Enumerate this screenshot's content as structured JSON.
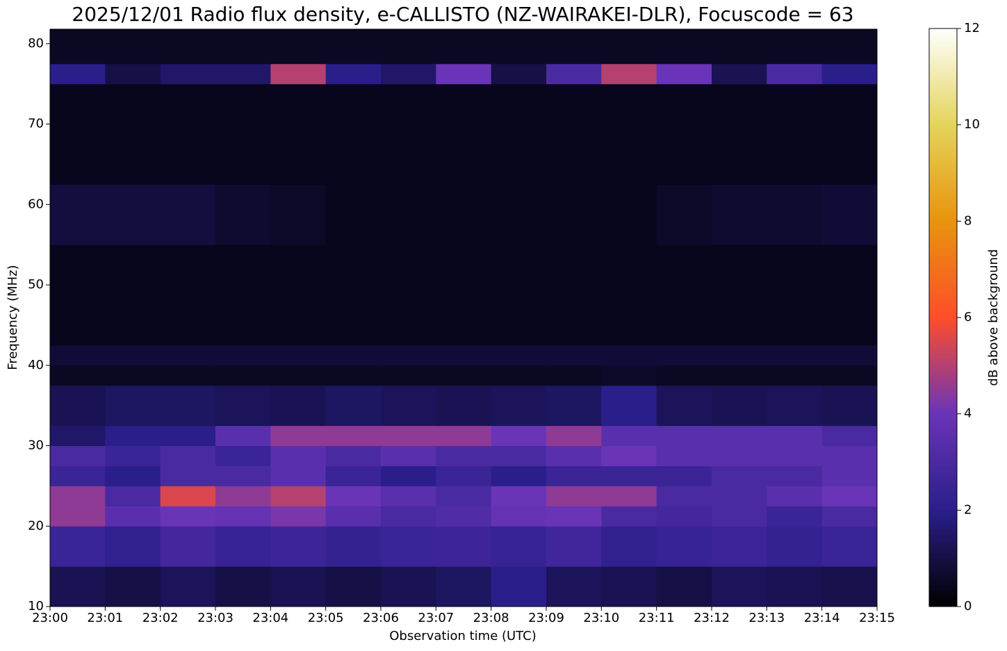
{
  "chart_data": {
    "type": "heatmap",
    "title": "2025/12/01 Radio flux density, e-CALLISTO (NZ-WAIRAKEI-DLR), Focuscode = 63",
    "x_label": "Observation time (UTC)",
    "y_label": "Frequency (MHz)",
    "colorbar_label": "dB above background",
    "xlim": [
      1380,
      1395
    ],
    "xticks": [
      {
        "value": 1380,
        "label": "23:00"
      },
      {
        "value": 1381,
        "label": "23:01"
      },
      {
        "value": 1382,
        "label": "23:02"
      },
      {
        "value": 1383,
        "label": "23:03"
      },
      {
        "value": 1384,
        "label": "23:04"
      },
      {
        "value": 1385,
        "label": "23:05"
      },
      {
        "value": 1386,
        "label": "23:06"
      },
      {
        "value": 1387,
        "label": "23:07"
      },
      {
        "value": 1388,
        "label": "23:08"
      },
      {
        "value": 1389,
        "label": "23:09"
      },
      {
        "value": 1390,
        "label": "23:10"
      },
      {
        "value": 1391,
        "label": "23:11"
      },
      {
        "value": 1392,
        "label": "23:12"
      },
      {
        "value": 1393,
        "label": "23:13"
      },
      {
        "value": 1394,
        "label": "23:14"
      },
      {
        "value": 1395,
        "label": "23:15"
      }
    ],
    "ylim": [
      10,
      81.8
    ],
    "yticks": [
      10,
      20,
      30,
      40,
      50,
      60,
      70,
      80
    ],
    "zlim": [
      0,
      12
    ],
    "zticks": [
      0,
      2,
      4,
      6,
      8,
      10,
      12
    ],
    "colormap": [
      "#000000",
      "#2a1f8a",
      "#6a34b8",
      "#ff4d2a",
      "#e8940c",
      "#e4d45a",
      "#ffffff"
    ],
    "xbins": [
      1380,
      1381,
      1382,
      1383,
      1384,
      1385,
      1386,
      1387,
      1388,
      1389,
      1390,
      1391,
      1392,
      1393,
      1394,
      1395
    ],
    "ybins": [
      10,
      15,
      20,
      22.5,
      25,
      27.5,
      30,
      32.5,
      37.5,
      40,
      42.5,
      55,
      62.5,
      75,
      77.5,
      81.8
    ],
    "z": [
      [
        1.2,
        1,
        1.3,
        1,
        1.2,
        1,
        1.2,
        1.4,
        2,
        1.3,
        1.2,
        1,
        1.3,
        1.2,
        1.1
      ],
      [
        2.5,
        2.2,
        2.8,
        2.4,
        2.6,
        2.3,
        2.5,
        2.6,
        2.4,
        2.7,
        2.2,
        2.4,
        2.6,
        2.3,
        2.5
      ],
      [
        4.5,
        3.5,
        4,
        3.8,
        4.2,
        3.5,
        3,
        3.2,
        3.8,
        4,
        3,
        2.8,
        3,
        2.5,
        3
      ],
      [
        4.5,
        3,
        5.5,
        4.5,
        5,
        4,
        3.5,
        3,
        4,
        4.5,
        4.5,
        3,
        3,
        3.5,
        4
      ],
      [
        2.5,
        2,
        3,
        3,
        3.5,
        2.5,
        2,
        2.5,
        2,
        2.5,
        2.5,
        2.5,
        3,
        3,
        3.5
      ],
      [
        3,
        2.5,
        3,
        2.5,
        3.5,
        3,
        3.5,
        3,
        3,
        3.5,
        4,
        3.5,
        3.5,
        3.5,
        3.5
      ],
      [
        1.5,
        2,
        2,
        3.5,
        4.5,
        4.5,
        4.5,
        4.5,
        4,
        4.5,
        3.5,
        3.5,
        3.5,
        3.5,
        3
      ],
      [
        1.2,
        1.4,
        1.4,
        1.3,
        1.2,
        1.4,
        1.3,
        1.2,
        1.3,
        1.4,
        2,
        1.3,
        1.2,
        1.3,
        1.2
      ],
      [
        0.5,
        0.5,
        0.5,
        0.5,
        0.5,
        0.5,
        0.5,
        0.5,
        0.5,
        0.5,
        0.6,
        0.5,
        0.5,
        0.5,
        0.5
      ],
      [
        0.8,
        0.8,
        0.8,
        0.8,
        0.8,
        0.8,
        0.8,
        0.8,
        0.8,
        0.8,
        0.8,
        0.8,
        0.8,
        0.8,
        0.8
      ],
      [
        0.4,
        0.4,
        0.4,
        0.4,
        0.4,
        0.4,
        0.4,
        0.4,
        0.4,
        0.4,
        0.4,
        0.4,
        0.4,
        0.4,
        0.4
      ],
      [
        0.9,
        0.9,
        0.9,
        0.7,
        0.6,
        0.4,
        0.4,
        0.4,
        0.4,
        0.4,
        0.4,
        0.6,
        0.7,
        0.7,
        0.8
      ],
      [
        0.4,
        0.4,
        0.4,
        0.4,
        0.4,
        0.4,
        0.4,
        0.4,
        0.4,
        0.4,
        0.4,
        0.4,
        0.4,
        0.4,
        0.4
      ],
      [
        2,
        1,
        1.5,
        1.5,
        5,
        2,
        1.5,
        4,
        1,
        3,
        5,
        4,
        1.2,
        3,
        2
      ],
      [
        0.5,
        0.5,
        0.5,
        0.5,
        0.5,
        0.5,
        0.5,
        0.5,
        0.5,
        0.5,
        0.5,
        0.5,
        0.5,
        0.5,
        0.5
      ]
    ]
  }
}
